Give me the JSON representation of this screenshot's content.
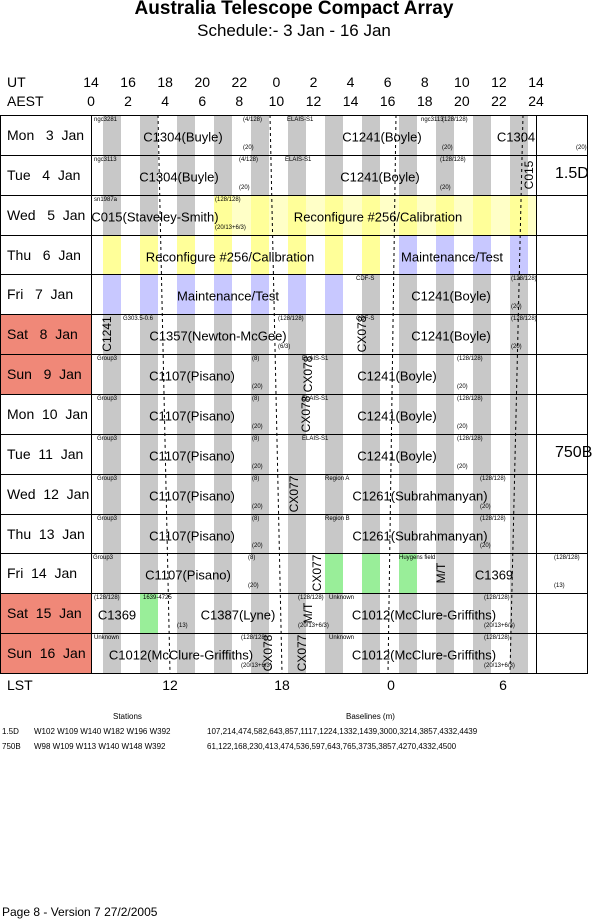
{
  "header": {
    "title": "Australia Telescope Compact Array",
    "subtitle": "Schedule:- 3  Jan - 16 Jan"
  },
  "axes": {
    "ut_label": "UT",
    "aest_label": "AEST",
    "lst_label": "LST",
    "ut_ticks": [
      "14",
      "16",
      "18",
      "20",
      "22",
      "0",
      "2",
      "4",
      "6",
      "8",
      "10",
      "12",
      "14"
    ],
    "aest_ticks": [
      "0",
      "2",
      "4",
      "6",
      "8",
      "10",
      "12",
      "14",
      "16",
      "18",
      "20",
      "22",
      "24"
    ],
    "lst_ticks": [
      "12",
      "18",
      "0",
      "6"
    ]
  },
  "colors": {
    "weekend": "#f08878",
    "gray": "#c8c8c8",
    "yellow": "#ffff99",
    "lavender": "#c8c8ff",
    "green": "#99ee99"
  },
  "days": [
    {
      "label": "Mon   3  Jan",
      "weekend": false
    },
    {
      "label": "Tue   4  Jan",
      "weekend": false
    },
    {
      "label": "Wed   5  Jan",
      "weekend": false
    },
    {
      "label": "Thu   6  Jan",
      "weekend": false
    },
    {
      "label": "Fri   7  Jan",
      "weekend": false
    },
    {
      "label": "Sat   8  Jan",
      "weekend": true
    },
    {
      "label": "Sun   9  Jan",
      "weekend": true
    },
    {
      "label": "Mon  10  Jan",
      "weekend": false
    },
    {
      "label": "Tue  11  Jan",
      "weekend": false
    },
    {
      "label": "Wed  12  Jan",
      "weekend": false
    },
    {
      "label": "Thu  13  Jan",
      "weekend": false
    },
    {
      "label": "Fri  14  Jan",
      "weekend": false
    },
    {
      "label": "Sat  15  Jan",
      "weekend": true
    },
    {
      "label": "Sun  16  Jan",
      "weekend": true
    }
  ],
  "projects": [
    {
      "row": 0,
      "text": "C1304(Buyle)",
      "src": "ngc3281",
      "note": "(4/128)",
      "n2": "(20)"
    },
    {
      "row": 0,
      "text": "C1241(Boyle)",
      "src": "ELAIS-S1",
      "note": "(128/128)",
      "n2": "(20)"
    },
    {
      "row": 0,
      "text": "C1304",
      "src": "ngc3113",
      "n2": "(20)"
    },
    {
      "row": 1,
      "text": "C1304(Buyle)",
      "src": "ngc3113",
      "note": "(4/128)",
      "n2": "(20)"
    },
    {
      "row": 1,
      "text": "C1241(Boyle)",
      "src": "ELAIS-S1",
      "note": "(128/128)",
      "n2": "(20)"
    },
    {
      "row": 2,
      "text": "C015(Staveley-Smith)",
      "src": "sn1987a",
      "note": "(128/128)",
      "n2": "(20/13+6/3)"
    },
    {
      "row": 2,
      "text": "Reconfigure #256/Calibration"
    },
    {
      "row": 3,
      "text": "Reconfigure #256/Calibration"
    },
    {
      "row": 3,
      "text": "Maintenance/Test"
    },
    {
      "row": 4,
      "text": "Maintenance/Test"
    },
    {
      "row": 4,
      "text": "C1241(Boyle)",
      "src": "CDF-S",
      "note": "(128/128)",
      "n2": "(20)"
    },
    {
      "row": 5,
      "text": "C1357(Newton-McGee)",
      "src": "G303.5-0.6",
      "note": "(128/128)",
      "n2": "(6/3)"
    },
    {
      "row": 5,
      "text": "C1241(Boyle)",
      "src": "CDF-S",
      "note": "(128/128)",
      "n2": "(20)"
    },
    {
      "row": 6,
      "text": "C1107(Pisano)",
      "src": "Group3",
      "note": "(8)",
      "n2": "(20)"
    },
    {
      "row": 6,
      "text": "C1241(Boyle)",
      "src": "ELAIS-S1",
      "note": "(128/128)",
      "n2": "(20)"
    },
    {
      "row": 7,
      "text": "C1107(Pisano)",
      "src": "Group3",
      "note": "(8)",
      "n2": "(20)"
    },
    {
      "row": 7,
      "text": "C1241(Boyle)",
      "src": "ELAIS-S1",
      "note": "(128/128)",
      "n2": "(20)"
    },
    {
      "row": 8,
      "text": "C1107(Pisano)",
      "src": "Group3",
      "note": "(8)",
      "n2": "(20)"
    },
    {
      "row": 8,
      "text": "C1241(Boyle)",
      "src": "ELAIS-S1",
      "note": "(128/128)",
      "n2": "(20)"
    },
    {
      "row": 9,
      "text": "C1107(Pisano)",
      "src": "Group3",
      "note": "(8)",
      "n2": "(20)"
    },
    {
      "row": 9,
      "text": "C1261(Subrahmanyan)",
      "src": "Region A",
      "note": "(128/128)",
      "n2": "(20)"
    },
    {
      "row": 10,
      "text": "C1107(Pisano)",
      "src": "Group3",
      "note": "(8)",
      "n2": "(20)"
    },
    {
      "row": 10,
      "text": "C1261(Subrahmanyan)",
      "src": "Region B",
      "note": "(128/128)",
      "n2": "(20)"
    },
    {
      "row": 11,
      "text": "C1107(Pisano)",
      "src": "Group3",
      "note": "(8)",
      "n2": "(20)"
    },
    {
      "row": 11,
      "text": "C1369",
      "src": "Huygens field",
      "note": "(128/128)",
      "n2": "(13)"
    },
    {
      "row": 12,
      "text": "C1369",
      "src": "(128/128)",
      "n2": "(13)"
    },
    {
      "row": 12,
      "text": "C1387(Lyne)",
      "src": "1639-4725",
      "note": "(128/128)",
      "n2": "(20/13+6/3)"
    },
    {
      "row": 12,
      "text": "C1012(McClure-Griffiths)",
      "src": "Unknown",
      "note": "(128/128)",
      "n2": "(20/13+6/3)"
    },
    {
      "row": 13,
      "text": "C1012(McClure-Griffiths)",
      "src": "Unknown",
      "note": "(128/128)",
      "n2": "(20/13+6/3)"
    },
    {
      "row": 13,
      "text": "C1012(McClure-Griffiths)",
      "src": "Unknown",
      "note": "(128/128)",
      "n2": "(20/13+6/3)"
    }
  ],
  "vertical_labels": [
    "C015",
    "C1241",
    "CX078",
    "CX078",
    "CX078",
    "CX077",
    "CX077",
    "M/T",
    "M/T",
    "CX077",
    "CX078"
  ],
  "configs": {
    "first": "1.5D",
    "second": "750B"
  },
  "legend": {
    "stations_title": "Stations",
    "baselines_title": "Baselines (m)",
    "rows": [
      {
        "cfg": "1.5D",
        "stations": "W102 W109 W140 W182 W196 W392",
        "baselines": "107,214,474,582,643,857,1117,1224,1332,1439,3000,3214,3857,4332,4439"
      },
      {
        "cfg": "750B",
        "stations": "W98 W109 W113 W140 W148 W392",
        "baselines": "61,122,168,230,413,474,536,597,643,765,3735,3857,4270,4332,4500"
      }
    ]
  },
  "footer": "Page 8 - Version 7  27/2/2005"
}
